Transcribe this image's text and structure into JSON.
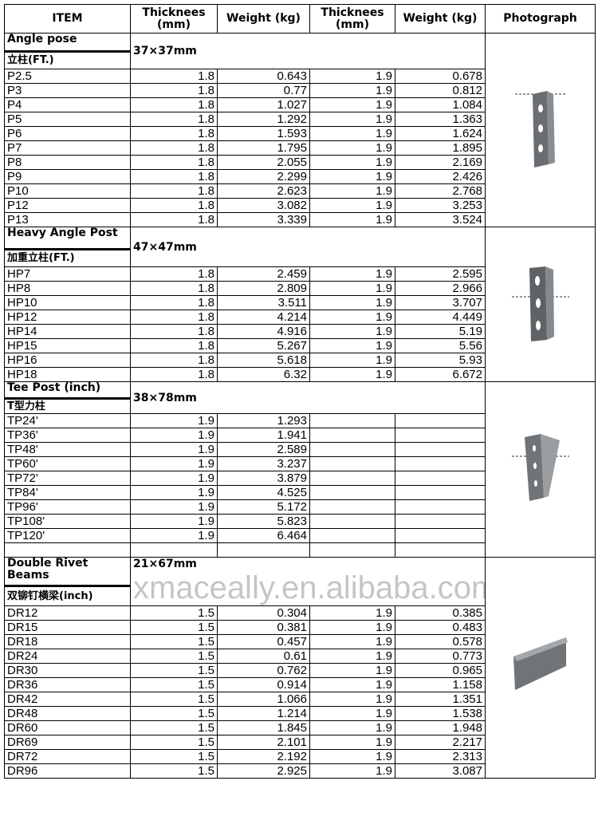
{
  "headers": [
    "ITEM",
    "Thicknees (mm)",
    "Weight (kg)",
    "Thicknees (mm)",
    "Weight (kg)",
    "Photograph"
  ],
  "sections": [
    {
      "name": "Angle pose",
      "cn": "立柱(FT.)",
      "spec": "37×37mm",
      "photo": "angle-post-photo",
      "rows": [
        [
          "P2.5",
          "1.8",
          "0.643",
          "1.9",
          "0.678"
        ],
        [
          "P3",
          "1.8",
          "0.77",
          "1.9",
          "0.812"
        ],
        [
          "P4",
          "1.8",
          "1.027",
          "1.9",
          "1.084"
        ],
        [
          "P5",
          "1.8",
          "1.292",
          "1.9",
          "1.363"
        ],
        [
          "P6",
          "1.8",
          "1.593",
          "1.9",
          "1.624"
        ],
        [
          "P7",
          "1.8",
          "1.795",
          "1.9",
          "1.895"
        ],
        [
          "P8",
          "1.8",
          "2.055",
          "1.9",
          "2.169"
        ],
        [
          "P9",
          "1.8",
          "2.299",
          "1.9",
          "2.426"
        ],
        [
          "P10",
          "1.8",
          "2.623",
          "1.9",
          "2.768"
        ],
        [
          "P12",
          "1.8",
          "3.082",
          "1.9",
          "3.253"
        ],
        [
          "P13",
          "1.8",
          "3.339",
          "1.9",
          "3.524"
        ]
      ]
    },
    {
      "name": "Heavy Angle Post",
      "cn": "加重立柱(FT.)",
      "spec": "47×47mm",
      "photo": "heavy-angle-post-photo",
      "rows": [
        [
          "HP7",
          "1.8",
          "2.459",
          "1.9",
          "2.595"
        ],
        [
          "HP8",
          "1.8",
          "2.809",
          "1.9",
          "2.966"
        ],
        [
          "HP10",
          "1.8",
          "3.511",
          "1.9",
          "3.707"
        ],
        [
          "HP12",
          "1.8",
          "4.214",
          "1.9",
          "4.449"
        ],
        [
          "HP14",
          "1.8",
          "4.916",
          "1.9",
          "5.19"
        ],
        [
          "HP15",
          "1.8",
          "5.267",
          "1.9",
          "5.56"
        ],
        [
          "HP16",
          "1.8",
          "5.618",
          "1.9",
          "5.93"
        ],
        [
          "HP18",
          "1.8",
          "6.32",
          "1.9",
          "6.672"
        ]
      ]
    },
    {
      "name": "Tee Post (inch)",
      "cn": "T型力柱",
      "spec": "38×78mm",
      "photo": "tee-post-photo",
      "rows": [
        [
          "TP24'",
          "1.9",
          "1.293",
          "",
          ""
        ],
        [
          "TP36'",
          "1.9",
          "1.941",
          "",
          ""
        ],
        [
          "TP48'",
          "1.9",
          "2.589",
          "",
          ""
        ],
        [
          "TP60'",
          "1.9",
          "3.237",
          "",
          ""
        ],
        [
          "TP72'",
          "1.9",
          "3.879",
          "",
          ""
        ],
        [
          "TP84'",
          "1.9",
          "4.525",
          "",
          ""
        ],
        [
          "TP96'",
          "1.9",
          "5.172",
          "",
          ""
        ],
        [
          "TP108'",
          "1.9",
          "5.823",
          "",
          ""
        ],
        [
          "TP120'",
          "1.9",
          "6.464",
          "",
          ""
        ],
        [
          "",
          "",
          "",
          "",
          ""
        ]
      ]
    },
    {
      "name": "Double Rivet Beams",
      "cn": "双铆钉横梁(inch)",
      "spec": "21×67mm",
      "photo": "double-rivet-beam-photo",
      "rows": [
        [
          "DR12",
          "1.5",
          "0.304",
          "1.9",
          "0.385"
        ],
        [
          "DR15",
          "1.5",
          "0.381",
          "1.9",
          "0.483"
        ],
        [
          "DR18",
          "1.5",
          "0.457",
          "1.9",
          "0.578"
        ],
        [
          "DR24",
          "1.5",
          "0.61",
          "1.9",
          "0.773"
        ],
        [
          "DR30",
          "1.5",
          "0.762",
          "1.9",
          "0.965"
        ],
        [
          "DR36",
          "1.5",
          "0.914",
          "1.9",
          "1.158"
        ],
        [
          "DR42",
          "1.5",
          "1.066",
          "1.9",
          "1.351"
        ],
        [
          "DR48",
          "1.5",
          "1.214",
          "1.9",
          "1.538"
        ],
        [
          "DR60",
          "1.5",
          "1.845",
          "1.9",
          "1.948"
        ],
        [
          "DR69",
          "1.5",
          "2.101",
          "1.9",
          "2.217"
        ],
        [
          "DR72",
          "1.5",
          "2.192",
          "1.9",
          "2.313"
        ],
        [
          "DR96",
          "1.5",
          "2.925",
          "1.9",
          "3.087"
        ]
      ]
    }
  ],
  "watermark": "xmaceally.en.alibaba.com"
}
